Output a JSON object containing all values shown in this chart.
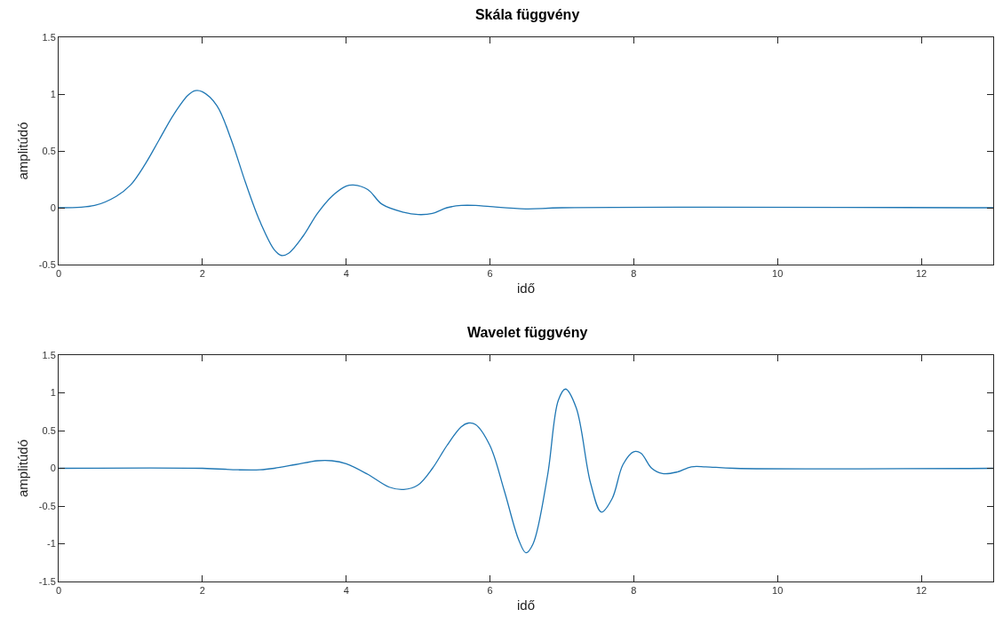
{
  "chart_data": [
    {
      "type": "line",
      "title": "Skála függvény",
      "xlabel": "idő",
      "ylabel": "amplitúdó",
      "xlim": [
        0,
        13
      ],
      "xticks": [
        0,
        2,
        4,
        6,
        8,
        10,
        12
      ],
      "ylim": [
        -0.5,
        1.5
      ],
      "yticks": [
        -0.5,
        0,
        0.5,
        1,
        1.5
      ],
      "grid": false,
      "series": [
        {
          "color": "#1f77b4",
          "x": [
            0,
            0.5,
            0.8,
            1.0,
            1.2,
            1.4,
            1.6,
            1.8,
            1.9,
            2.0,
            2.2,
            2.4,
            2.6,
            2.8,
            3.0,
            3.1,
            3.2,
            3.4,
            3.6,
            3.8,
            4.0,
            4.1,
            4.3,
            4.5,
            4.8,
            5.0,
            5.2,
            5.4,
            5.6,
            5.8,
            6.0,
            6.5,
            7,
            13
          ],
          "values": [
            0,
            0.02,
            0.1,
            0.2,
            0.38,
            0.6,
            0.82,
            0.99,
            1.03,
            1.02,
            0.9,
            0.6,
            0.22,
            -0.12,
            -0.37,
            -0.42,
            -0.4,
            -0.25,
            -0.05,
            0.1,
            0.19,
            0.2,
            0.16,
            0.03,
            -0.04,
            -0.06,
            -0.05,
            0,
            0.02,
            0.02,
            0.01,
            -0.01,
            0,
            0
          ]
        }
      ]
    },
    {
      "type": "line",
      "title": "Wavelet függvény",
      "xlabel": "idő",
      "ylabel": "amplitúdó",
      "xlim": [
        0,
        13
      ],
      "xticks": [
        0,
        2,
        4,
        6,
        8,
        10,
        12
      ],
      "ylim": [
        -1.5,
        1.5
      ],
      "yticks": [
        -1.5,
        -1,
        -0.5,
        0,
        0.5,
        1,
        1.5
      ],
      "grid": false,
      "series": [
        {
          "color": "#1f77b4",
          "x": [
            0,
            2,
            2.5,
            2.8,
            3.0,
            3.3,
            3.6,
            3.8,
            4.0,
            4.3,
            4.6,
            4.8,
            5.0,
            5.2,
            5.4,
            5.6,
            5.7,
            5.8,
            6.0,
            6.2,
            6.4,
            6.5,
            6.6,
            6.8,
            6.95,
            7.05,
            7.2,
            7.4,
            7.55,
            7.7,
            7.85,
            8.0,
            8.1,
            8.25,
            8.4,
            8.6,
            8.8,
            9.0,
            9.4,
            13
          ],
          "values": [
            0,
            0,
            -0.02,
            -0.02,
            0,
            0.05,
            0.1,
            0.1,
            0.06,
            -0.08,
            -0.25,
            -0.28,
            -0.22,
            0,
            0.3,
            0.55,
            0.6,
            0.58,
            0.3,
            -0.3,
            -0.95,
            -1.12,
            -1.0,
            -0.1,
            0.9,
            1.05,
            0.8,
            -0.2,
            -0.58,
            -0.4,
            0.05,
            0.22,
            0.2,
            0,
            -0.07,
            -0.05,
            0.02,
            0.02,
            0,
            0
          ]
        }
      ]
    }
  ]
}
